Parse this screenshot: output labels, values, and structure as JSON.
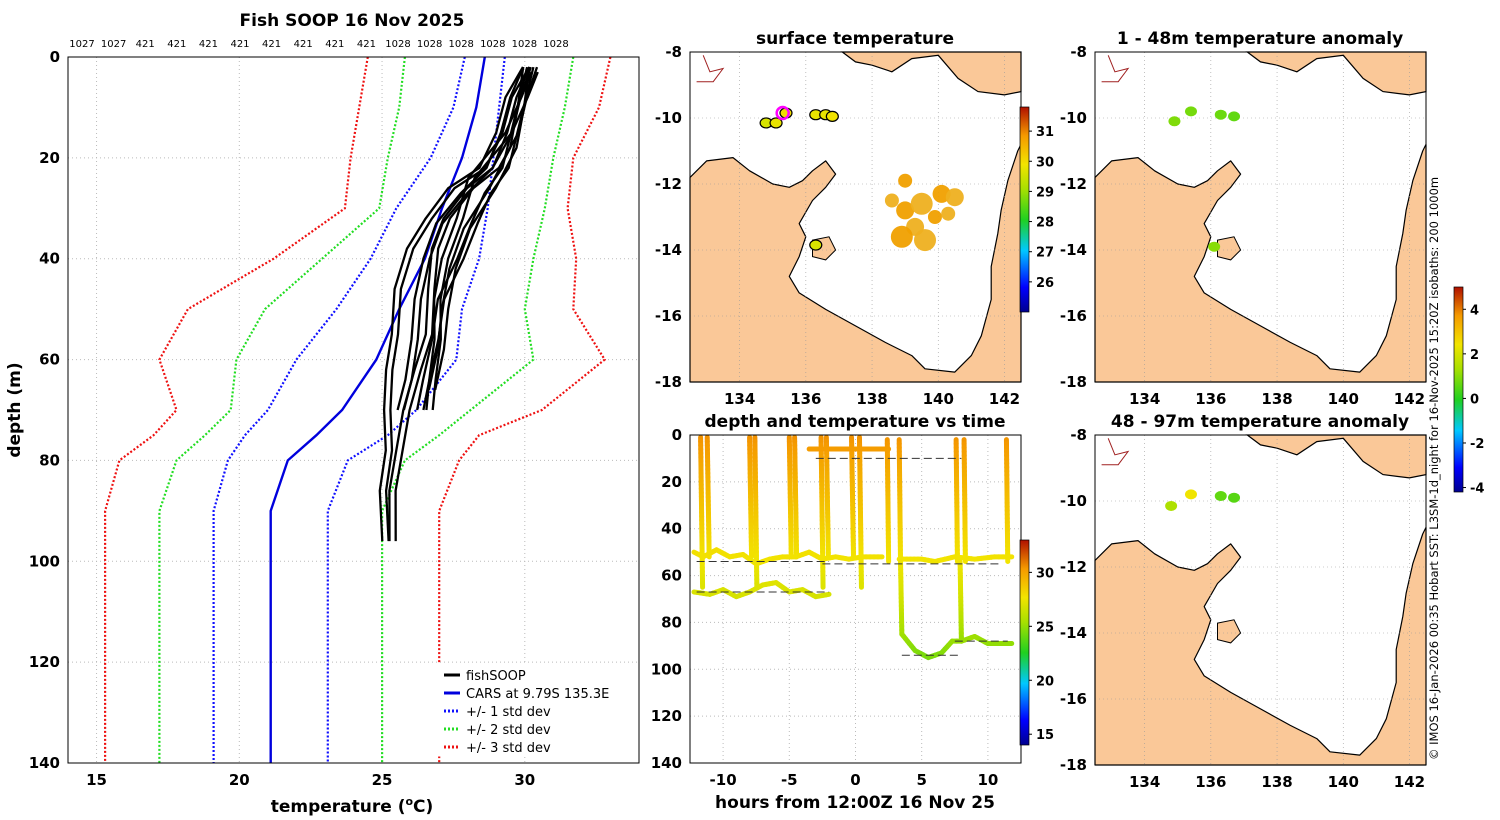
{
  "profile_panel": {
    "title": "Fish SOOP 16 Nov 2025",
    "xlabel_prefix": "temperature (",
    "xlabel_sup": "o",
    "xlabel_suffix": "C)",
    "ylabel": "depth (m)",
    "top_ids": [
      "1027",
      "1027",
      "421",
      "421",
      "421",
      "421",
      "421",
      "421",
      "421",
      "421",
      "1028",
      "1028",
      "1028",
      "1028",
      "1028",
      "1028"
    ],
    "legend": {
      "fish": "fishSOOP",
      "cars": "CARS at 9.79S 135.3E",
      "std1": "+/- 1 std dev",
      "std2": "+/- 2 std dev",
      "std3": "+/- 3 std dev"
    }
  },
  "map_titles": {
    "surface": "surface temperature",
    "anom1": "1 - 48m temperature anomaly",
    "anom2": "48 - 97m temperature anomaly"
  },
  "time_panel": {
    "title": "depth and temperature vs time",
    "xlabel": "hours from 12:00Z 16 Nov 25"
  },
  "side_note": "© IMOS 16-Jan-2026 00:35 Hobart SST: L3SM-1d_night for 16-Nov-2025 15:20Z isobaths: 200  1000m",
  "colors": {
    "fish": "#000000",
    "cars": "#0000dd",
    "std1": "#1010ff",
    "std2": "#22dd22",
    "std3": "#ee1111",
    "land": "#fac898"
  },
  "chart_data": [
    {
      "id": "profile",
      "type": "line",
      "title": "Fish SOOP 16 Nov 2025",
      "xlabel": "temperature (oC)",
      "ylabel": "depth (m)",
      "xlim": [
        14,
        34
      ],
      "ylim": [
        0,
        140
      ],
      "y_reversed": true,
      "xticks": [
        15,
        20,
        25,
        30
      ],
      "yticks": [
        0,
        20,
        40,
        60,
        80,
        100,
        120,
        140
      ],
      "depths": [
        0,
        10,
        20,
        30,
        40,
        50,
        60,
        70,
        75,
        80,
        90,
        100,
        120,
        140
      ],
      "series": [
        {
          "name": "CARS at 9.79S 135.3E",
          "key": "cars",
          "values": [
            28.6,
            28.3,
            27.8,
            27.1,
            26.5,
            25.6,
            24.8,
            23.6,
            22.7,
            21.7,
            21.1,
            21.1,
            21.1,
            21.1
          ]
        },
        {
          "name": "+/- 1 std dev",
          "key": "std1",
          "values": [
            29.3,
            29.1,
            28.9,
            28.7,
            28.4,
            27.8,
            27.6,
            26.2,
            25.2,
            23.8,
            23.1,
            23.1,
            23.1,
            23.1
          ]
        },
        {
          "name": "+/- 1 std dev",
          "key": "std1",
          "values": [
            27.9,
            27.5,
            26.7,
            25.5,
            24.6,
            23.4,
            22.0,
            21.0,
            20.2,
            19.6,
            19.1,
            19.1,
            19.1,
            19.1
          ]
        },
        {
          "name": "+/- 2 std dev",
          "key": "std2",
          "values": [
            31.7,
            31.4,
            31.0,
            30.7,
            30.3,
            30.0,
            30.3,
            28.1,
            27.0,
            25.8,
            25.0,
            25.0,
            25.0,
            25.0
          ]
        },
        {
          "name": "+/- 2 std dev",
          "key": "std2",
          "values": [
            25.8,
            25.6,
            25.2,
            24.9,
            22.9,
            20.9,
            19.9,
            19.7,
            18.8,
            17.8,
            17.2,
            17.2,
            17.2,
            17.2
          ]
        },
        {
          "name": "+/- 3 std dev",
          "key": "std3",
          "values": [
            33.0,
            32.6,
            31.7,
            31.5,
            31.8,
            31.7,
            32.8,
            30.6,
            28.4,
            27.7,
            27.0,
            27.0,
            27.0,
            27.0
          ]
        },
        {
          "name": "+/- 3 std dev",
          "key": "std3",
          "values": [
            24.5,
            24.2,
            23.9,
            23.7,
            21.2,
            18.2,
            17.2,
            17.8,
            17.0,
            15.8,
            15.3,
            15.3,
            15.3,
            15.3
          ]
        }
      ],
      "fish_casts": [
        {
          "name": "fishSOOP",
          "depth": [
            2,
            8,
            15,
            22,
            27,
            33,
            40,
            48,
            56,
            64,
            70
          ],
          "temp": [
            30.2,
            29.9,
            29.7,
            29.3,
            28.7,
            28.3,
            27.7,
            27.1,
            26.9,
            26.5,
            26.4
          ]
        },
        {
          "name": "fishSOOP",
          "depth": [
            2,
            8,
            15,
            22,
            27,
            33,
            40,
            48,
            56,
            64,
            70
          ],
          "temp": [
            30.0,
            29.6,
            29.3,
            28.7,
            27.9,
            27.0,
            26.5,
            26.3,
            26.1,
            25.9,
            25.7
          ]
        },
        {
          "name": "fishSOOP",
          "depth": [
            2,
            8,
            15,
            22,
            26,
            32,
            38,
            46,
            55,
            62,
            70,
            78,
            86,
            96
          ],
          "temp": [
            30.0,
            29.5,
            29.1,
            28.5,
            27.5,
            26.6,
            26.0,
            25.6,
            25.4,
            25.3,
            25.2,
            25.2,
            25.1,
            25.1
          ]
        },
        {
          "name": "fishSOOP",
          "depth": [
            2,
            8,
            15,
            22,
            26,
            32,
            38,
            46,
            55,
            62,
            70,
            78,
            86,
            96
          ],
          "temp": [
            30.3,
            30.0,
            29.6,
            29.0,
            28.1,
            27.2,
            26.9,
            26.7,
            26.6,
            26.3,
            25.8,
            25.6,
            25.4,
            25.3
          ]
        },
        {
          "name": "fishSOOP",
          "depth": [
            3,
            8,
            15,
            24,
            32,
            40,
            48,
            56,
            64,
            70
          ],
          "temp": [
            30.4,
            30.0,
            29.4,
            28.2,
            27.7,
            27.2,
            27.0,
            26.9,
            26.8,
            26.7
          ]
        },
        {
          "name": "fishSOOP",
          "depth": [
            2,
            10,
            18,
            26,
            34,
            42,
            50,
            58,
            66
          ],
          "temp": [
            30.1,
            29.8,
            29.6,
            28.9,
            27.9,
            27.5,
            27.2,
            27.0,
            26.8
          ]
        }
      ]
    },
    {
      "id": "time",
      "type": "scatter",
      "title": "depth and temperature vs time",
      "xlabel": "hours from 12:00Z 16 Nov 25",
      "xlim": [
        -12.5,
        12.5
      ],
      "ylim": [
        0,
        140
      ],
      "y_reversed": true,
      "xticks": [
        -10,
        -5,
        0,
        5,
        10
      ],
      "yticks": [
        0,
        20,
        40,
        60,
        80,
        100,
        120,
        140
      ],
      "colorbar": {
        "range": [
          14,
          33
        ],
        "ticks": [
          15,
          20,
          25,
          30
        ]
      }
    },
    {
      "id": "sst_map",
      "type": "heatmap",
      "title": "surface temperature",
      "xlim": [
        132.5,
        142.5
      ],
      "ylim": [
        -18,
        -8
      ],
      "xticks": [
        134,
        136,
        138,
        140,
        142
      ],
      "yticks": [
        -8,
        -10,
        -12,
        -14,
        -16,
        -18
      ],
      "colorbar": {
        "range": [
          25,
          31.8
        ],
        "ticks": [
          26,
          27,
          28,
          29,
          30,
          31
        ]
      },
      "points": [
        {
          "lon": 134.8,
          "lat": -10.15,
          "value": 29.6
        },
        {
          "lon": 135.1,
          "lat": -10.15,
          "value": 29.8
        },
        {
          "lon": 135.4,
          "lat": -9.85,
          "value": 30.0
        },
        {
          "lon": 136.3,
          "lat": -9.9,
          "value": 29.8
        },
        {
          "lon": 136.6,
          "lat": -9.9,
          "value": 29.8
        },
        {
          "lon": 136.8,
          "lat": -9.95,
          "value": 29.9
        },
        {
          "lon": 136.3,
          "lat": -13.85,
          "value": 29.6
        }
      ]
    },
    {
      "id": "anom_1_48",
      "type": "heatmap",
      "title": "1 - 48m temperature anomaly",
      "xlim": [
        132.5,
        142.5
      ],
      "ylim": [
        -18,
        -8
      ],
      "xticks": [
        134,
        136,
        138,
        140,
        142
      ],
      "yticks": [
        -8,
        -10,
        -12,
        -14,
        -16,
        -18
      ],
      "colorbar": {
        "range": [
          -4.2,
          5
        ],
        "ticks": [
          -4,
          -2,
          0,
          2,
          4
        ]
      },
      "points": [
        {
          "lon": 134.9,
          "lat": -10.1,
          "value": 0.9
        },
        {
          "lon": 135.4,
          "lat": -9.8,
          "value": 0.8
        },
        {
          "lon": 136.3,
          "lat": -9.9,
          "value": 0.7
        },
        {
          "lon": 136.7,
          "lat": -9.95,
          "value": 0.6
        },
        {
          "lon": 136.1,
          "lat": -13.9,
          "value": 1.0
        }
      ]
    },
    {
      "id": "anom_48_97",
      "type": "heatmap",
      "title": "48 - 97m temperature anomaly",
      "xlim": [
        132.5,
        142.5
      ],
      "ylim": [
        -18,
        -8
      ],
      "xticks": [
        134,
        136,
        138,
        140,
        142
      ],
      "yticks": [
        -8,
        -10,
        -12,
        -14,
        -16,
        -18
      ],
      "points": [
        {
          "lon": 134.8,
          "lat": -10.15,
          "value": 1.4
        },
        {
          "lon": 135.4,
          "lat": -9.8,
          "value": 2.4
        },
        {
          "lon": 136.3,
          "lat": -9.85,
          "value": 0.6
        },
        {
          "lon": 136.7,
          "lat": -9.9,
          "value": 0.5
        }
      ]
    }
  ]
}
